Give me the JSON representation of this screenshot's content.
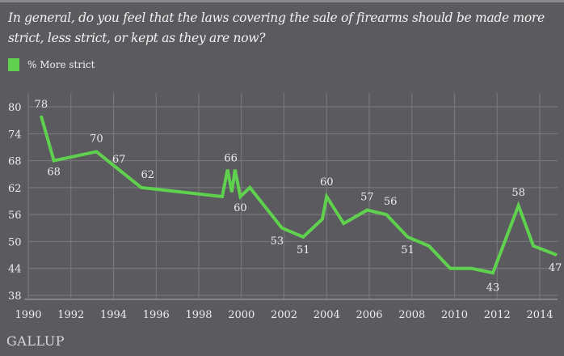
{
  "header": {
    "question": "In general, do you feel that the laws covering the sale of firearms should be made more strict, less strict, or kept as they are now?"
  },
  "legend": {
    "label": "% More strict",
    "color": "#5fd14f"
  },
  "footer": {
    "logo": "GALLUP"
  },
  "chart_data": {
    "type": "line",
    "title": "In general, do you feel that the laws covering the sale of firearms should be made more strict, less strict, or kept as they are now?",
    "xlabel": "",
    "ylabel": "",
    "xlim": [
      1990,
      2015
    ],
    "ylim": [
      38,
      80
    ],
    "grid": true,
    "legend_position": "top-left",
    "x_ticks": [
      1990,
      1992,
      1994,
      1996,
      1998,
      2000,
      2002,
      2004,
      2006,
      2008,
      2010,
      2012,
      2014
    ],
    "y_ticks": [
      38,
      44,
      50,
      56,
      62,
      68,
      74,
      80
    ],
    "series": [
      {
        "name": "% More strict",
        "color": "#5fd14f",
        "points": [
          {
            "x": 1990.6,
            "y": 78,
            "label": "78"
          },
          {
            "x": 1991.2,
            "y": 68,
            "label": "68"
          },
          {
            "x": 1993.2,
            "y": 70,
            "label": "70"
          },
          {
            "x": 1995.3,
            "y": 62,
            "label": "62"
          },
          {
            "x": 1999.1,
            "y": 60,
            "label": ""
          },
          {
            "x": 1999.35,
            "y": 66,
            "label": "66"
          },
          {
            "x": 1999.55,
            "y": 61,
            "label": ""
          },
          {
            "x": 1999.7,
            "y": 66,
            "label": ""
          },
          {
            "x": 1999.95,
            "y": 60,
            "label": "60"
          },
          {
            "x": 2000.4,
            "y": 62,
            "label": ""
          },
          {
            "x": 2001.9,
            "y": 53,
            "label": "53"
          },
          {
            "x": 2002.9,
            "y": 51,
            "label": "51"
          },
          {
            "x": 2003.8,
            "y": 55,
            "label": ""
          },
          {
            "x": 2004.0,
            "y": 60,
            "label": "60"
          },
          {
            "x": 2004.8,
            "y": 54,
            "label": ""
          },
          {
            "x": 2005.9,
            "y": 57,
            "label": "57"
          },
          {
            "x": 2006.8,
            "y": 56,
            "label": "56"
          },
          {
            "x": 2007.8,
            "y": 51,
            "label": "51"
          },
          {
            "x": 2008.8,
            "y": 49,
            "label": ""
          },
          {
            "x": 2009.8,
            "y": 44,
            "label": ""
          },
          {
            "x": 2010.8,
            "y": 44,
            "label": ""
          },
          {
            "x": 2011.8,
            "y": 43,
            "label": "43"
          },
          {
            "x": 2013.0,
            "y": 58,
            "label": "58"
          },
          {
            "x": 2013.7,
            "y": 49,
            "label": ""
          },
          {
            "x": 2014.8,
            "y": 47,
            "label": "47"
          }
        ],
        "annotations": [
          {
            "x": 1993.95,
            "y": 67,
            "label": "67"
          }
        ]
      }
    ]
  }
}
